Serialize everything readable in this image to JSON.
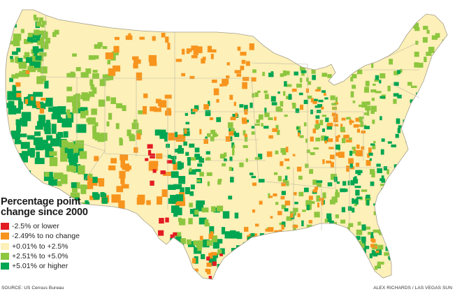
{
  "map": {
    "legend": {
      "title_line1": "Percentage point",
      "title_line2": "change since 2000",
      "items": [
        {
          "label": "-2.5% or lower",
          "color": "#e31b23"
        },
        {
          "label": "-2.49% to no change",
          "color": "#f7941d"
        },
        {
          "label": "+0.01% to +2.5%",
          "color": "#fdf0b8"
        },
        {
          "label": "+2.51% to +5.0%",
          "color": "#8dc63f"
        },
        {
          "label": "+5.01% or higher",
          "color": "#00a651"
        }
      ]
    },
    "state_border_color": "#bdb7a6",
    "source": "SOURCE: US Census Bureau",
    "credit": "ALEX RICHARDS / LAS VEGAS SUN"
  }
}
